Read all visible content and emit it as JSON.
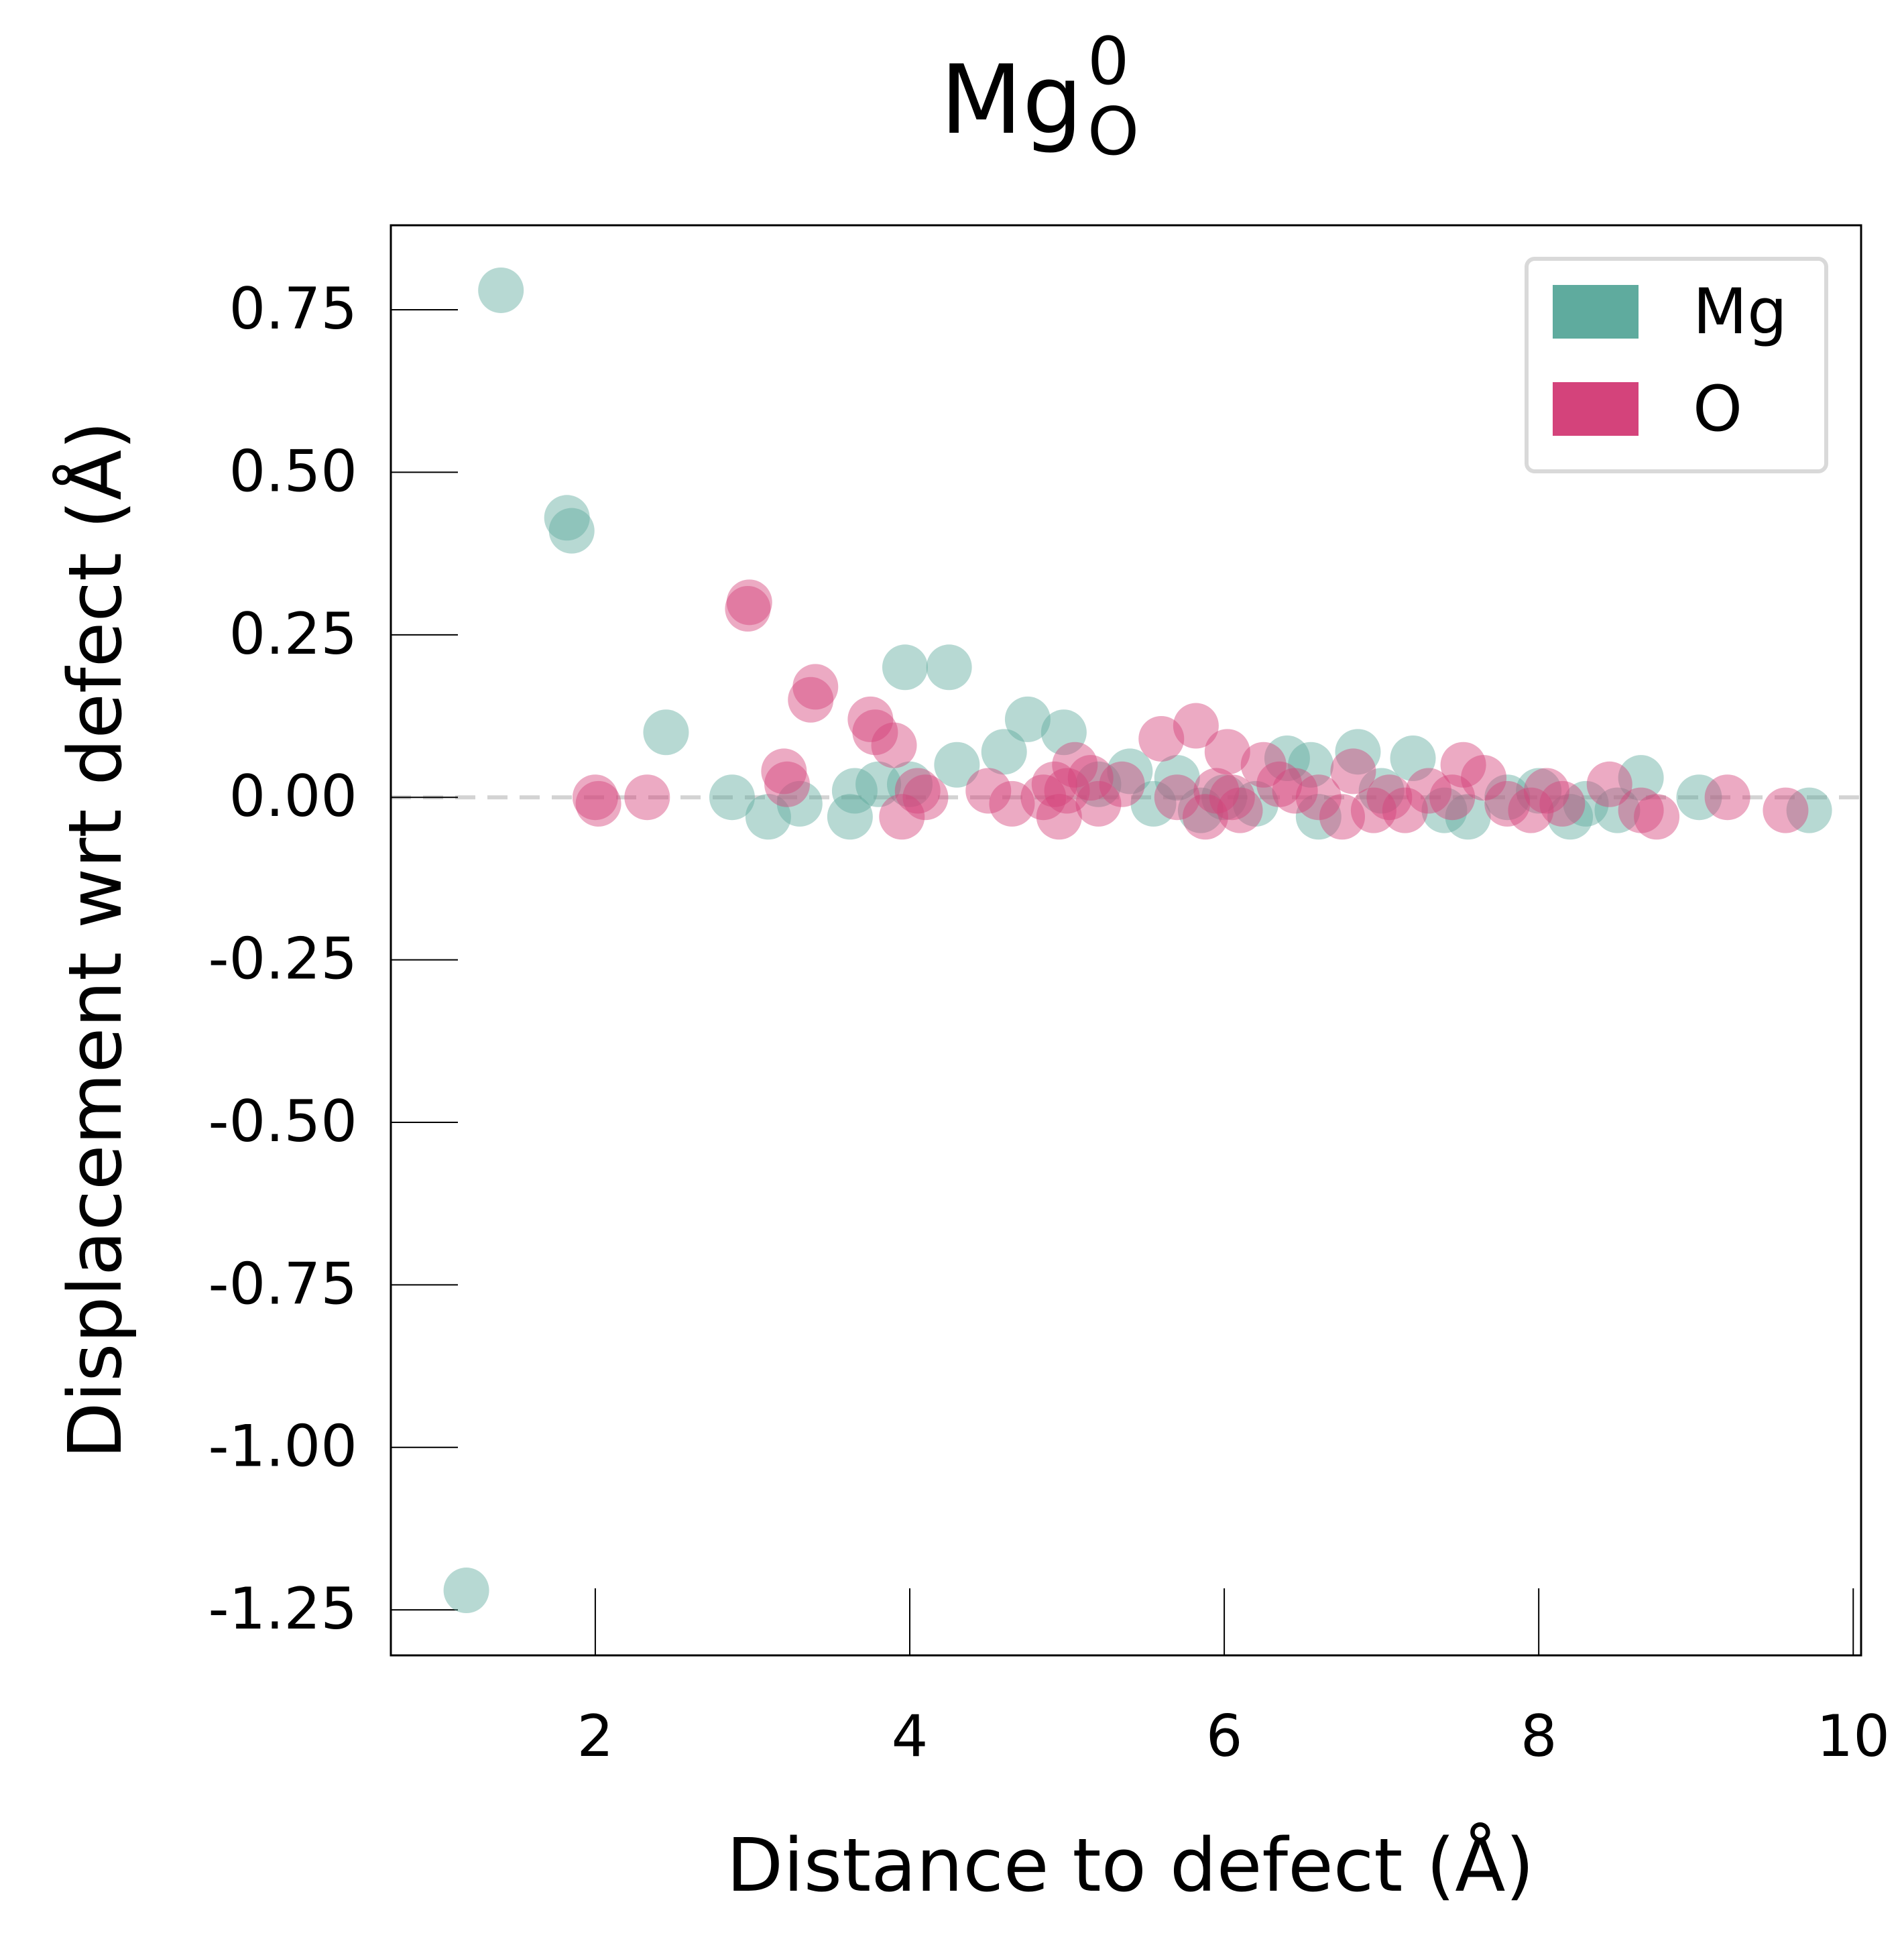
{
  "chart_data": {
    "type": "scatter",
    "title": {
      "base": "Mg",
      "superscript": "0",
      "subscript": "O"
    },
    "xlabel": "Distance to defect (Å)",
    "ylabel": "Displacement wrt defect (Å)",
    "xlim": [
      0.7,
      10.05
    ],
    "ylim": [
      -1.32,
      0.88
    ],
    "x_ticks": [
      2,
      4,
      6,
      8,
      10
    ],
    "x_tick_labels": [
      "2",
      "4",
      "6",
      "8",
      "10"
    ],
    "y_ticks": [
      0.75,
      0.5,
      0.25,
      0.0,
      -0.25,
      -0.5,
      -0.75,
      -1.0,
      -1.25
    ],
    "y_tick_labels": [
      "0.75",
      "0.50",
      "0.25",
      "0.00",
      "-0.25",
      "-0.50",
      "-0.75",
      "-1.00",
      "-1.25"
    ],
    "reference_line": {
      "y": 0.0,
      "style": "dashed",
      "color": "#d3d3d3"
    },
    "grid": false,
    "legend_position": "top-right",
    "colors": {
      "Mg": "#5fab9e",
      "O": "#d4437b"
    },
    "marker_alpha": 0.45,
    "series": [
      {
        "name": "Mg",
        "points": [
          [
            1.18,
            -1.22
          ],
          [
            1.4,
            0.78
          ],
          [
            1.82,
            0.43
          ],
          [
            1.85,
            0.41
          ],
          [
            2.45,
            0.1
          ],
          [
            2.87,
            0.0
          ],
          [
            3.1,
            -0.03
          ],
          [
            3.3,
            -0.01
          ],
          [
            3.62,
            -0.03
          ],
          [
            3.65,
            0.01
          ],
          [
            3.8,
            0.02
          ],
          [
            3.97,
            0.2
          ],
          [
            4.0,
            0.02
          ],
          [
            4.25,
            0.2
          ],
          [
            4.3,
            0.05
          ],
          [
            4.6,
            0.07
          ],
          [
            4.75,
            0.12
          ],
          [
            4.98,
            0.1
          ],
          [
            5.2,
            0.02
          ],
          [
            5.4,
            0.04
          ],
          [
            5.55,
            -0.01
          ],
          [
            5.7,
            0.03
          ],
          [
            5.85,
            -0.02
          ],
          [
            6.0,
            0.0
          ],
          [
            6.2,
            -0.01
          ],
          [
            6.4,
            0.06
          ],
          [
            6.55,
            0.05
          ],
          [
            6.6,
            -0.03
          ],
          [
            6.85,
            0.07
          ],
          [
            7.0,
            0.01
          ],
          [
            7.2,
            0.06
          ],
          [
            7.4,
            -0.02
          ],
          [
            7.55,
            -0.03
          ],
          [
            7.8,
            0.0
          ],
          [
            8.0,
            0.01
          ],
          [
            8.2,
            -0.03
          ],
          [
            8.3,
            -0.01
          ],
          [
            8.5,
            -0.02
          ],
          [
            8.65,
            0.03
          ],
          [
            9.02,
            0.0
          ],
          [
            9.72,
            -0.02
          ]
        ]
      },
      {
        "name": "O",
        "points": [
          [
            2.0,
            0.0
          ],
          [
            2.02,
            -0.01
          ],
          [
            2.33,
            0.0
          ],
          [
            2.97,
            0.29
          ],
          [
            2.98,
            0.3
          ],
          [
            3.2,
            0.04
          ],
          [
            3.22,
            0.02
          ],
          [
            3.37,
            0.15
          ],
          [
            3.4,
            0.17
          ],
          [
            3.75,
            0.12
          ],
          [
            3.78,
            0.1
          ],
          [
            3.9,
            0.08
          ],
          [
            3.95,
            -0.03
          ],
          [
            4.05,
            0.01
          ],
          [
            4.1,
            0.0
          ],
          [
            4.5,
            0.01
          ],
          [
            4.65,
            -0.01
          ],
          [
            4.85,
            0.0
          ],
          [
            4.92,
            0.02
          ],
          [
            4.95,
            -0.03
          ],
          [
            5.0,
            0.01
          ],
          [
            5.05,
            0.05
          ],
          [
            5.15,
            0.03
          ],
          [
            5.2,
            -0.01
          ],
          [
            5.35,
            0.02
          ],
          [
            5.6,
            0.09
          ],
          [
            5.7,
            0.0
          ],
          [
            5.82,
            0.11
          ],
          [
            5.88,
            -0.03
          ],
          [
            5.95,
            0.01
          ],
          [
            6.02,
            0.07
          ],
          [
            6.05,
            0.0
          ],
          [
            6.1,
            -0.02
          ],
          [
            6.25,
            0.05
          ],
          [
            6.35,
            0.02
          ],
          [
            6.45,
            0.01
          ],
          [
            6.6,
            0.0
          ],
          [
            6.75,
            -0.03
          ],
          [
            6.82,
            0.04
          ],
          [
            6.95,
            -0.02
          ],
          [
            7.05,
            0.0
          ],
          [
            7.15,
            -0.02
          ],
          [
            7.3,
            0.01
          ],
          [
            7.45,
            0.0
          ],
          [
            7.52,
            0.05
          ],
          [
            7.65,
            0.03
          ],
          [
            7.8,
            -0.01
          ],
          [
            7.95,
            -0.02
          ],
          [
            8.05,
            0.01
          ],
          [
            8.15,
            -0.01
          ],
          [
            8.45,
            0.02
          ],
          [
            8.65,
            -0.02
          ],
          [
            8.75,
            -0.03
          ],
          [
            9.2,
            0.0
          ],
          [
            9.57,
            -0.02
          ]
        ]
      }
    ]
  }
}
